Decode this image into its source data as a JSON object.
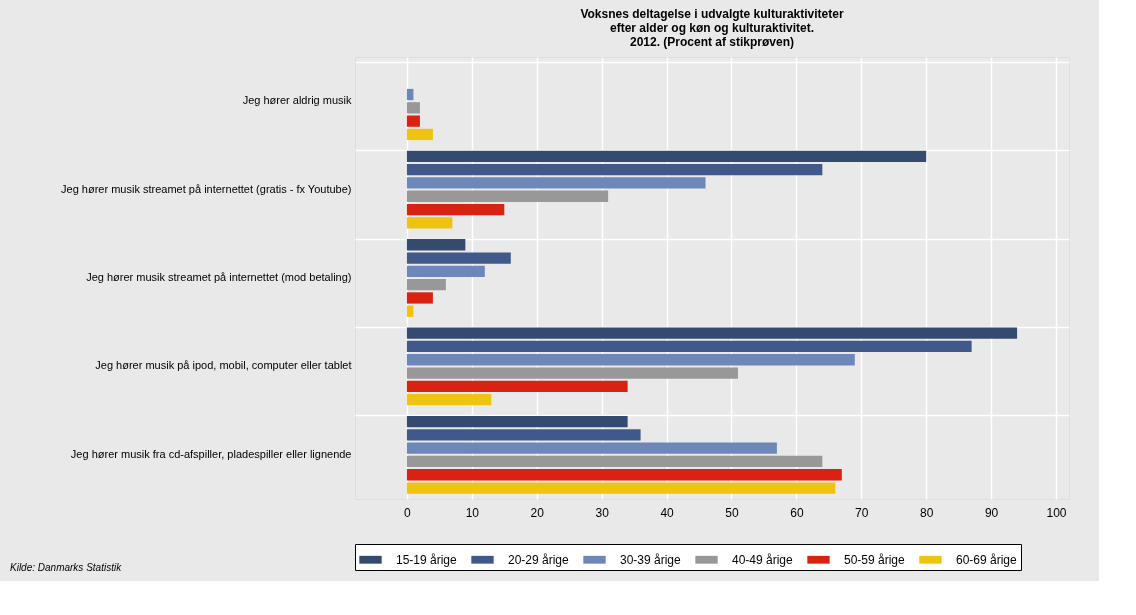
{
  "chart_data": {
    "type": "bar",
    "orientation": "horizontal",
    "title": "Voksnes deltagelse i udvalgte kulturaktiviteter\nefter alder og køn og kulturaktivitet.\n2012. (Procent af stikprøven)",
    "categories": [
      "Jeg hører aldrig musik",
      "Jeg hører musik streamet på internettet (gratis - fx Youtube)",
      "Jeg hører musik streamet på internettet (mod betaling)",
      "Jeg hører musik på ipod, mobil, computer eller tablet",
      "Jeg hører musik fra cd-afspiller, pladespiller eller lignende"
    ],
    "series": [
      {
        "name": "15-19 årige",
        "color": "#344a6e",
        "values": [
          0,
          80,
          9,
          94,
          34
        ]
      },
      {
        "name": "20-29 årige",
        "color": "#40598a",
        "values": [
          0,
          64,
          16,
          87,
          36
        ]
      },
      {
        "name": "30-39 årige",
        "color": "#6d88b8",
        "values": [
          1,
          46,
          12,
          69,
          57
        ]
      },
      {
        "name": "40-49 årige",
        "color": "#989898",
        "values": [
          2,
          31,
          6,
          51,
          64
        ]
      },
      {
        "name": "50-59 årige",
        "color": "#d92211",
        "values": [
          2,
          15,
          4,
          34,
          67
        ]
      },
      {
        "name": "60-69 årige",
        "color": "#eec312",
        "values": [
          4,
          7,
          1,
          13,
          66
        ]
      }
    ],
    "xlim": [
      -8,
      102
    ],
    "xticks": [
      0,
      10,
      20,
      30,
      40,
      50,
      60,
      70,
      80,
      90,
      100
    ],
    "grid": true,
    "legend": "bottom",
    "annotations": [
      "Kilde: Danmarks Statistik"
    ]
  }
}
